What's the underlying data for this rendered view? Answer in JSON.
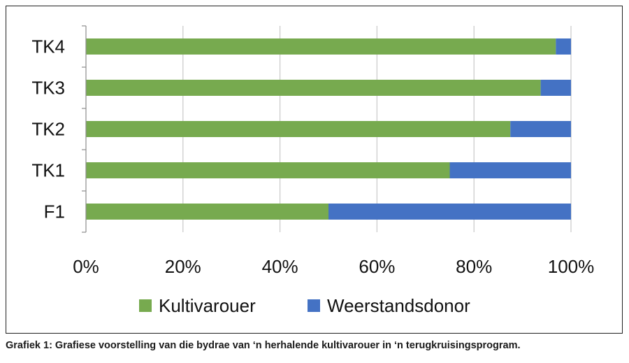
{
  "chart_data": {
    "type": "bar",
    "orientation": "horizontal",
    "stacked": true,
    "categories": [
      "F1",
      "TK1",
      "TK2",
      "TK3",
      "TK4"
    ],
    "series": [
      {
        "name": "Kultivarouer",
        "color": "#77AA4F",
        "values": [
          50,
          75,
          87.5,
          93.75,
          96.875
        ]
      },
      {
        "name": "Weerstandsdonor",
        "color": "#4472C4",
        "values": [
          50,
          25,
          12.5,
          6.25,
          3.125
        ]
      }
    ],
    "xlim": [
      0,
      100
    ],
    "x_ticks": [
      "0%",
      "20%",
      "40%",
      "60%",
      "80%",
      "100%"
    ],
    "grid": "vertical",
    "legend_position": "bottom"
  },
  "caption": "Grafiek 1: Grafiese voorstelling van die bydrae van ‘n herhalende kultivarouer in ‘n terugkruisingsprogram."
}
